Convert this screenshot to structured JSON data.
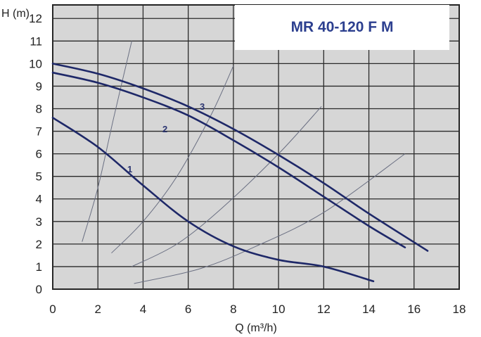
{
  "chart_data": {
    "type": "line",
    "title": "MR 40-120 F M",
    "xlabel": "Q (m³/h)",
    "ylabel": "H (m)",
    "xlim": [
      0,
      18
    ],
    "ylim": [
      0,
      12.6
    ],
    "x_ticks": [
      "0",
      "2",
      "4",
      "6",
      "8",
      "10",
      "12",
      "14",
      "16",
      "18"
    ],
    "y_ticks": [
      "0",
      "1",
      "2",
      "3",
      "4",
      "5",
      "6",
      "7",
      "8",
      "9",
      "10",
      "11",
      "12"
    ],
    "grid": true,
    "series": [
      {
        "name": "1",
        "x": [
          0,
          2,
          4,
          6,
          8,
          10,
          12,
          14.2
        ],
        "y": [
          7.6,
          6.3,
          4.6,
          3.0,
          1.9,
          1.3,
          1.0,
          0.35
        ]
      },
      {
        "name": "2",
        "x": [
          0,
          2,
          4,
          6,
          8,
          10,
          12,
          14,
          15.6
        ],
        "y": [
          9.6,
          9.15,
          8.5,
          7.7,
          6.6,
          5.4,
          4.1,
          2.8,
          1.85
        ]
      },
      {
        "name": "3",
        "x": [
          0,
          2,
          4,
          6,
          8,
          10,
          12,
          14,
          16.6
        ],
        "y": [
          10.0,
          9.55,
          8.9,
          8.1,
          7.1,
          5.95,
          4.7,
          3.35,
          1.7
        ]
      }
    ],
    "system_curves": [
      {
        "x": [
          1.3,
          2.0,
          2.7,
          3.5
        ],
        "y": [
          2.1,
          4.5,
          7.6,
          11.0
        ]
      },
      {
        "x": [
          2.6,
          4.0,
          5.5,
          7.0,
          8.0
        ],
        "y": [
          1.6,
          3.0,
          5.0,
          7.7,
          9.9
        ]
      },
      {
        "x": [
          3.5,
          5.5,
          7.5,
          10.0,
          11.9
        ],
        "y": [
          1.0,
          2.0,
          3.6,
          6.0,
          8.1
        ]
      },
      {
        "x": [
          3.6,
          6.5,
          9.0,
          12.0,
          15.6
        ],
        "y": [
          0.25,
          0.9,
          1.9,
          3.4,
          6.0
        ]
      }
    ]
  },
  "curve_labels": [
    "1",
    "2",
    "3"
  ]
}
